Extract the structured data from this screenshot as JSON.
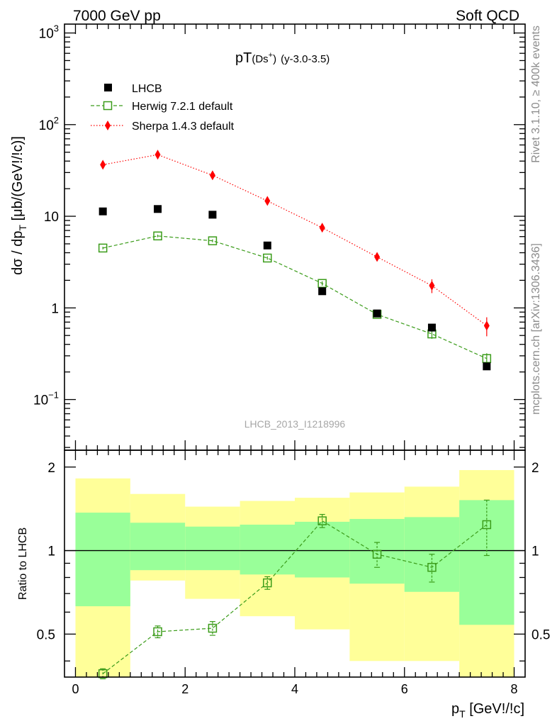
{
  "header": {
    "left": "7000 GeV pp",
    "right": "Soft QCD"
  },
  "side": {
    "rivet": "Rivet 3.1.10, ≥ 400k events",
    "arxiv": "mcplots.cern.ch [arXiv:1306.3436]"
  },
  "plot": {
    "title_main": "pT",
    "title_particle": "(Ds",
    "title_sup": "+",
    "title_close": ")",
    "title_range": "(y-3.0-3.5)",
    "watermark": "LHCB_2013_I1218996",
    "ylabel_main_text": "dσ / dp",
    "ylabel_main_sub": "T",
    "ylabel_main_unit": " [μb/(GeV!/!c)]",
    "ylabel_ratio": "Ratio to LHCB",
    "xlabel_text": "p",
    "xlabel_sub": "T",
    "xlabel_unit": " [GeV!/!c]",
    "top_ytick_labels": [
      {
        "base": "10",
        "exp": "3",
        "value": 1000
      },
      {
        "base": "10",
        "exp": "2",
        "value": 100
      },
      {
        "base": "10",
        "exp": "",
        "value": 10
      },
      {
        "base": "1",
        "exp": "",
        "value": 1
      },
      {
        "base": "10",
        "exp": "−1",
        "value": 0.1
      }
    ],
    "ratio_ytick_labels": [
      {
        "text": "2",
        "value": 2
      },
      {
        "text": "1",
        "value": 1
      },
      {
        "text": "0.5",
        "value": 0.5
      }
    ],
    "xtick_labels": [
      "0",
      "2",
      "4",
      "6",
      "8"
    ]
  },
  "chart_data": {
    "type": "scatter",
    "x_range": [
      -0.2,
      8.2
    ],
    "y_range_main": [
      0.028,
      1250
    ],
    "y_scale_main": "log",
    "y_range_ratio": [
      0.35,
      2.3
    ],
    "y_scale_ratio": "log",
    "legend_position": "top-left",
    "bins": [
      [
        0,
        1
      ],
      [
        1,
        2
      ],
      [
        2,
        3
      ],
      [
        3,
        4
      ],
      [
        4,
        5
      ],
      [
        5,
        6
      ],
      [
        6,
        7
      ],
      [
        7,
        8
      ]
    ],
    "series": [
      {
        "name": "LHCB",
        "color": "#000000",
        "marker": "square-filled",
        "x": [
          0.5,
          1.5,
          2.5,
          3.5,
          4.5,
          5.5,
          6.5,
          7.5
        ],
        "y": [
          11.3,
          12.0,
          10.4,
          4.8,
          1.52,
          0.87,
          0.61,
          0.23
        ]
      },
      {
        "name": "Herwig 7.2.1 default",
        "color": "#3b9c1a",
        "marker": "square-open",
        "line": "dashed",
        "x": [
          0.5,
          1.5,
          2.5,
          3.5,
          4.5,
          5.5,
          6.5,
          7.5
        ],
        "y": [
          4.5,
          6.1,
          5.4,
          3.5,
          1.85,
          0.85,
          0.52,
          0.28
        ],
        "yerr": [
          0.15,
          0.2,
          0.2,
          0.15,
          0.1,
          0.06,
          0.06,
          0.04
        ]
      },
      {
        "name": "Sherpa 1.4.3 default",
        "color": "#ff0000",
        "marker": "diamond-filled",
        "line": "dotted",
        "x": [
          0.5,
          1.5,
          2.5,
          3.5,
          4.5,
          5.5,
          6.5,
          7.5
        ],
        "y": [
          36.5,
          47.0,
          28.0,
          14.7,
          7.5,
          3.6,
          1.75,
          0.64
        ],
        "yerr": [
          1.0,
          1.2,
          0.8,
          0.6,
          0.5,
          0.35,
          0.3,
          0.15
        ]
      }
    ],
    "ratio": {
      "reference": "LHCB",
      "band_yellow": {
        "low": [
          0.34,
          0.78,
          0.67,
          0.58,
          0.52,
          0.4,
          0.4,
          0.34
        ],
        "high": [
          1.82,
          1.6,
          1.44,
          1.51,
          1.55,
          1.62,
          1.7,
          1.95
        ]
      },
      "band_green": {
        "low": [
          0.63,
          0.85,
          0.85,
          0.82,
          0.8,
          0.76,
          0.71,
          0.54
        ],
        "high": [
          1.37,
          1.26,
          1.22,
          1.24,
          1.27,
          1.3,
          1.32,
          1.52
        ]
      },
      "herwig": {
        "x": [
          0.5,
          1.5,
          2.5,
          3.5,
          4.5,
          5.5,
          6.5,
          7.5
        ],
        "y": [
          0.36,
          0.51,
          0.525,
          0.765,
          1.28,
          0.97,
          0.87,
          1.24
        ],
        "yerr": [
          0.015,
          0.025,
          0.03,
          0.04,
          0.07,
          0.1,
          0.1,
          0.28
        ]
      }
    }
  }
}
